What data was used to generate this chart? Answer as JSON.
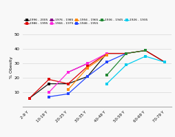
{
  "x_labels": [
    "2-9 Y",
    "10-19 Y",
    "20-25 Y",
    "30-35 Y",
    "40-49 Y",
    "50-59 Y",
    "60-69 Y",
    "70-79 Y"
  ],
  "series": [
    {
      "label": "1996 - 2005",
      "color": "#111111",
      "values": [
        6,
        16,
        16,
        21,
        37,
        37,
        39,
        31
      ]
    },
    {
      "label": "1986 - 1995",
      "color": "#dd0000",
      "values": [
        6,
        19,
        16,
        28,
        37,
        37,
        39,
        31
      ]
    },
    {
      "label": "1976 - 1985",
      "color": "#880088",
      "values": [
        null,
        null,
        24,
        30,
        null,
        null,
        null,
        null
      ]
    },
    {
      "label": "1966 - 1975",
      "color": "#ff22dd",
      "values": [
        null,
        10,
        24,
        30,
        37,
        null,
        null,
        null
      ]
    },
    {
      "label": "1956 - 1965",
      "color": "#ff8800",
      "values": [
        null,
        null,
        12,
        27,
        36,
        null,
        null,
        null
      ]
    },
    {
      "label": "1946 - 1955",
      "color": "#2244ff",
      "values": [
        null,
        7,
        9,
        21,
        31,
        37,
        null,
        null
      ]
    },
    {
      "label": "1936 - 1945",
      "color": "#228833",
      "values": [
        null,
        null,
        null,
        null,
        22,
        37,
        39,
        null
      ]
    },
    {
      "label": "1926 - 1935",
      "color": "#00ccee",
      "values": [
        null,
        null,
        null,
        null,
        16,
        29,
        35,
        31
      ]
    }
  ],
  "ylabel": "% Obesity",
  "ylim": [
    0,
    55
  ],
  "yticks": [
    0,
    10,
    20,
    30,
    40,
    50
  ],
  "bg_color": "#f8f8f8",
  "grid_color": "#e0e0e0"
}
